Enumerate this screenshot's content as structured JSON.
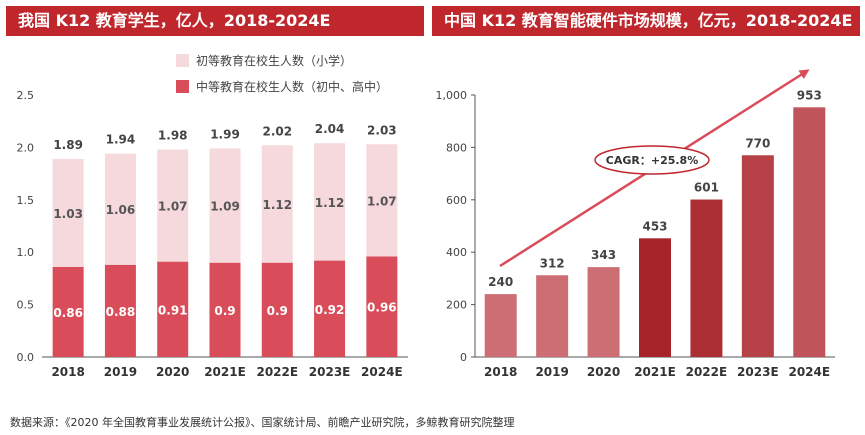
{
  "titles": {
    "left": "我国 K12 教育学生，亿人，2018-2024E",
    "right": "中国 K12 教育智能硬件市场规模，亿元，2018-2024E"
  },
  "source_note": "数据来源：《2020 年全国教育事业发展统计公报》、国家统计局、前瞻产业研究院，多鲸教育研究院整理",
  "colors": {
    "title_bg": "#c0272d",
    "primary_light": "#f5d9dc",
    "secondary_red": "#d94d5a",
    "market_bar_dark": "#a8242b",
    "market_bar_light": "#cc6e73",
    "axis": "#555555"
  },
  "chart_data": [
    {
      "type": "bar",
      "stacked": true,
      "categories": [
        "2018",
        "2019",
        "2020",
        "2021E",
        "2022E",
        "2023E",
        "2024E"
      ],
      "series": [
        {
          "name": "中等教育在校生人数（初中、高中）",
          "values": [
            0.86,
            0.88,
            0.91,
            0.9,
            0.9,
            0.92,
            0.96
          ]
        },
        {
          "name": "初等教育在校生人数（小学）",
          "values": [
            1.03,
            1.06,
            1.07,
            1.09,
            1.12,
            1.12,
            1.07
          ]
        }
      ],
      "totals": [
        1.89,
        1.94,
        1.98,
        1.99,
        2.02,
        2.04,
        2.03
      ],
      "ylim": [
        0,
        2.5
      ],
      "yticks": [
        "0.0",
        "0.5",
        "1.0",
        "1.5",
        "2.0",
        "2.5"
      ],
      "legend_position": "top-right",
      "grid": false
    },
    {
      "type": "bar",
      "categories": [
        "2018",
        "2019",
        "2020",
        "2021E",
        "2022E",
        "2023E",
        "2024E"
      ],
      "values": [
        240,
        312,
        343,
        453,
        601,
        770,
        953
      ],
      "ylim": [
        0,
        1000
      ],
      "yticks": [
        "0",
        "200",
        "400",
        "600",
        "800",
        "1,000"
      ],
      "annotation": "CAGR：+25.8%",
      "grid": false
    }
  ]
}
